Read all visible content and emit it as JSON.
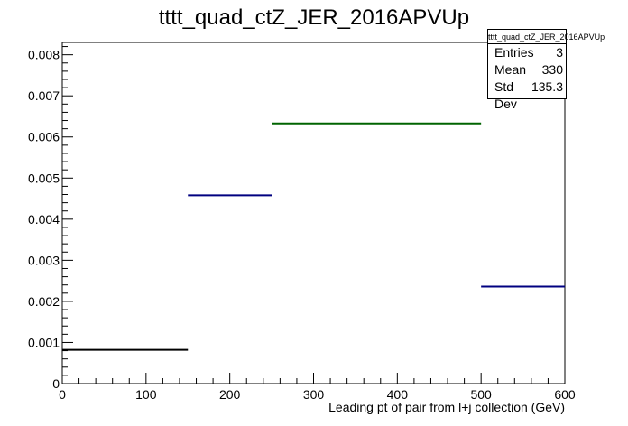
{
  "chart_data": {
    "type": "histogram",
    "title": "tttt_quad_ctZ_JER_2016APVUp",
    "xlabel": "Leading pt of pair from l+j collection (GeV)",
    "ylabel": "",
    "xlim": [
      0,
      600
    ],
    "ylim": [
      0,
      0.0083
    ],
    "x_ticks": [
      0,
      100,
      200,
      300,
      400,
      500,
      600
    ],
    "x_tick_labels": [
      "0",
      "100",
      "200",
      "300",
      "400",
      "500",
      "600"
    ],
    "y_ticks": [
      0,
      0.001,
      0.002,
      0.003,
      0.004,
      0.005,
      0.006,
      0.007,
      0.008
    ],
    "y_tick_labels": [
      "0",
      "0.001",
      "0.002",
      "0.003",
      "0.004",
      "0.005",
      "0.006",
      "0.007",
      "0.008"
    ],
    "bins": [
      {
        "x0": 0,
        "x1": 150,
        "value": 0.00082,
        "color": "#000000"
      },
      {
        "x0": 150,
        "x1": 250,
        "value": 0.00458,
        "color": "#000080"
      },
      {
        "x0": 250,
        "x1": 500,
        "value": 0.00633,
        "color": "#006400"
      },
      {
        "x0": 500,
        "x1": 600,
        "value": 0.00236,
        "color": "#000080"
      }
    ],
    "grid": false,
    "legend": "none"
  },
  "stats_box": {
    "name": "tttt_quad_ctZ_JER_2016APVUp",
    "rows": [
      {
        "label": "Entries",
        "value": "3"
      },
      {
        "label": "Mean",
        "value": "330"
      },
      {
        "label": "Std Dev",
        "value": "135.3"
      }
    ]
  }
}
